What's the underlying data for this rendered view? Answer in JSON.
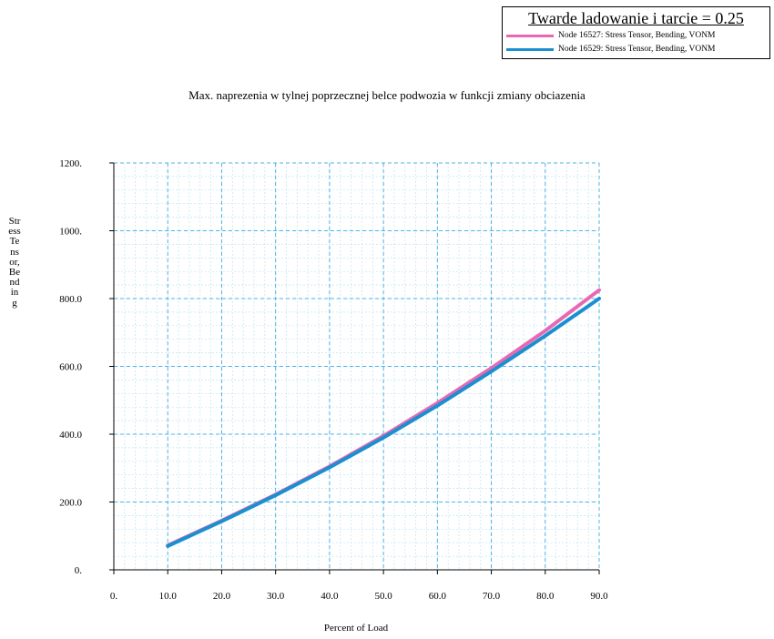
{
  "legend": {
    "title": "Twarde ladowanie i tarcie = 0.25"
  },
  "chart_data": {
    "type": "line",
    "title": "Max. naprezenia w tylnej poprzecznej belce podwozia w funkcji zmiany obciazenia",
    "xlabel": "Percent of Load",
    "ylabel": "Stress Tensor, Bending",
    "xlim": [
      0,
      90
    ],
    "ylim": [
      0,
      1200
    ],
    "x_ticks": [
      "0.",
      "10.0",
      "20.0",
      "30.0",
      "40.0",
      "50.0",
      "60.0",
      "70.0",
      "80.0",
      "90.0"
    ],
    "y_ticks": [
      "0.",
      "200.0",
      "400.0",
      "600.0",
      "800.0",
      "1000.",
      "1200."
    ],
    "grid": true,
    "legend_position": "top-right",
    "x": [
      10,
      20,
      30,
      40,
      50,
      60,
      70,
      80,
      90
    ],
    "series": [
      {
        "name": "Node 16527: Stress Tensor, Bending, VONM",
        "color": "#e868b4",
        "values": [
          72,
          145,
          222,
          305,
          395,
          492,
          595,
          705,
          825
        ]
      },
      {
        "name": "Node 16529: Stress Tensor, Bending, VONM",
        "color": "#1a90d0",
        "values": [
          70,
          143,
          220,
          302,
          390,
          484,
          585,
          690,
          800
        ]
      }
    ]
  }
}
